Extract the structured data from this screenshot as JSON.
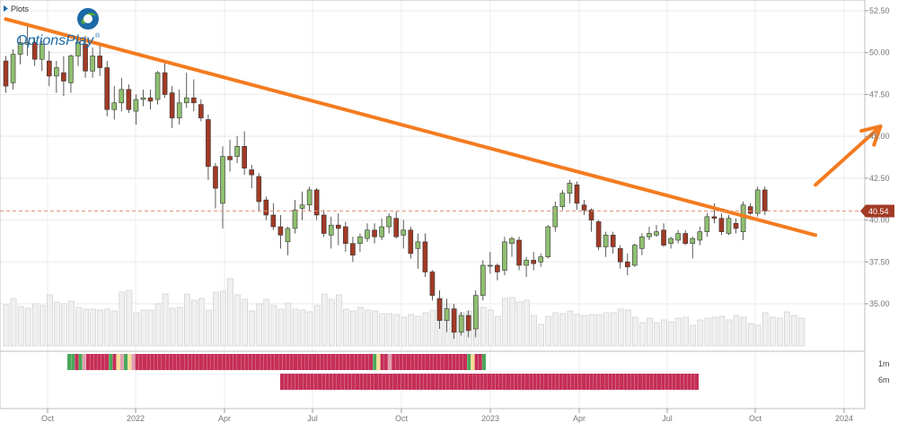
{
  "toolbar": {
    "plots_label": "Plots"
  },
  "logo": {
    "brand_text": "OptionsPlay",
    "trademark": "®",
    "brand_color": "#1b6aa8",
    "accent_color": "#57a838"
  },
  "colors": {
    "up_candle": "#8fbf6f",
    "down_candle": "#a23a25",
    "trendline": "#f47b20",
    "price_line": "#e0957a",
    "price_badge": "#a23a25",
    "volume_bar": "#f0f0f0",
    "heat_strong_bullish": "#4aa85a",
    "heat_bullish": "#a9d8a0",
    "heat_neutral": "#f7dc95",
    "heat_bearish": "#e0a0b0",
    "heat_strong_bearish": "#c52e57"
  },
  "chart_data": {
    "type": "candlestick",
    "title": "",
    "x_tick_labels": [
      "Oct",
      "2022",
      "Apr",
      "Jul",
      "Oct",
      "2023",
      "Apr",
      "Jul",
      "Oct",
      "2024"
    ],
    "y_ticks": [
      35.0,
      37.5,
      40.0,
      42.5,
      45.0,
      47.5,
      50.0,
      52.5
    ],
    "y_tick_labels": [
      "35.00",
      "37.50",
      "40.00",
      "42.50",
      "45.00",
      "47.50",
      "50.00",
      "52.50"
    ],
    "ylim": [
      32.5,
      52.8
    ],
    "last_price": 40.54,
    "last_price_label": "40.54",
    "candles_ohlc": [
      [
        49.5,
        49.8,
        47.6,
        48.0
      ],
      [
        48.2,
        50.2,
        47.8,
        49.9
      ],
      [
        49.9,
        51.0,
        49.3,
        50.6
      ],
      [
        50.5,
        51.6,
        49.8,
        50.6
      ],
      [
        50.6,
        50.9,
        49.2,
        49.6
      ],
      [
        49.6,
        50.7,
        48.9,
        50.5
      ],
      [
        49.5,
        50.1,
        48.0,
        48.6
      ],
      [
        48.6,
        49.5,
        47.6,
        49.1
      ],
      [
        48.8,
        49.8,
        47.4,
        48.3
      ],
      [
        48.2,
        49.9,
        47.6,
        49.8
      ],
      [
        49.8,
        51.0,
        49.2,
        50.6
      ],
      [
        50.5,
        51.0,
        48.5,
        48.9
      ],
      [
        48.9,
        50.3,
        48.5,
        49.8
      ],
      [
        49.8,
        50.6,
        48.6,
        49.1
      ],
      [
        49.1,
        49.5,
        46.2,
        46.6
      ],
      [
        46.6,
        48.0,
        46.0,
        47.0
      ],
      [
        47.0,
        48.5,
        46.5,
        47.8
      ],
      [
        47.8,
        48.1,
        46.4,
        46.6
      ],
      [
        46.5,
        47.5,
        45.7,
        47.2
      ],
      [
        47.2,
        47.8,
        46.8,
        47.3
      ],
      [
        47.3,
        47.8,
        46.6,
        47.1
      ],
      [
        47.2,
        48.9,
        46.9,
        48.8
      ],
      [
        48.8,
        49.5,
        47.3,
        47.5
      ],
      [
        47.6,
        48.0,
        45.5,
        46.1
      ],
      [
        46.1,
        47.8,
        45.7,
        47.0
      ],
      [
        47.0,
        48.8,
        46.7,
        47.3
      ],
      [
        47.3,
        48.4,
        46.5,
        47.0
      ],
      [
        46.9,
        47.2,
        45.9,
        46.1
      ],
      [
        46.0,
        46.3,
        42.4,
        43.2
      ],
      [
        43.2,
        43.4,
        40.7,
        41.9
      ],
      [
        41.0,
        44.4,
        39.5,
        43.8
      ],
      [
        43.8,
        44.8,
        42.9,
        43.6
      ],
      [
        43.8,
        45.0,
        43.4,
        44.4
      ],
      [
        44.4,
        45.3,
        42.7,
        43.1
      ],
      [
        43.0,
        43.3,
        41.9,
        42.7
      ],
      [
        42.6,
        42.8,
        40.5,
        41.1
      ],
      [
        41.2,
        41.4,
        40.0,
        40.3
      ],
      [
        40.3,
        41.0,
        39.4,
        39.6
      ],
      [
        39.6,
        40.3,
        38.3,
        39.1
      ],
      [
        38.7,
        39.6,
        37.9,
        39.5
      ],
      [
        39.5,
        41.2,
        39.2,
        40.6
      ],
      [
        40.7,
        41.7,
        40.0,
        40.9
      ],
      [
        40.9,
        42.0,
        40.5,
        41.8
      ],
      [
        41.8,
        41.9,
        40.0,
        40.3
      ],
      [
        40.3,
        40.6,
        39.0,
        39.2
      ],
      [
        39.1,
        40.2,
        38.3,
        39.7
      ],
      [
        39.7,
        40.4,
        38.5,
        39.5
      ],
      [
        39.6,
        39.9,
        38.1,
        38.6
      ],
      [
        38.6,
        39.0,
        37.5,
        37.9
      ],
      [
        38.6,
        39.2,
        38.1,
        39.0
      ],
      [
        38.9,
        39.8,
        38.7,
        39.4
      ],
      [
        39.4,
        39.8,
        38.6,
        39.0
      ],
      [
        39.0,
        40.1,
        38.8,
        39.6
      ],
      [
        39.6,
        40.4,
        39.2,
        40.2
      ],
      [
        40.1,
        40.5,
        38.9,
        39.0
      ],
      [
        39.1,
        40.0,
        38.3,
        39.4
      ],
      [
        39.4,
        39.6,
        37.7,
        38.0
      ],
      [
        38.3,
        39.2,
        37.1,
        38.7
      ],
      [
        38.7,
        39.2,
        36.6,
        36.9
      ],
      [
        36.9,
        37.0,
        35.2,
        35.5
      ],
      [
        35.3,
        35.8,
        33.5,
        34.0
      ],
      [
        34.0,
        35.3,
        33.3,
        34.7
      ],
      [
        34.7,
        35.0,
        32.9,
        33.3
      ],
      [
        33.3,
        34.5,
        33.1,
        34.3
      ],
      [
        34.3,
        34.6,
        33.0,
        33.4
      ],
      [
        33.5,
        35.8,
        33.0,
        35.5
      ],
      [
        35.5,
        37.6,
        35.2,
        37.3
      ],
      [
        37.3,
        38.1,
        36.8,
        37.3
      ],
      [
        37.3,
        37.4,
        36.4,
        36.9
      ],
      [
        37.0,
        39.0,
        36.7,
        38.7
      ],
      [
        38.6,
        39.0,
        37.8,
        38.9
      ],
      [
        38.8,
        39.0,
        37.0,
        37.3
      ],
      [
        37.3,
        37.8,
        36.6,
        37.6
      ],
      [
        37.6,
        38.1,
        37.0,
        37.4
      ],
      [
        37.5,
        38.0,
        37.2,
        37.8
      ],
      [
        37.8,
        39.7,
        37.7,
        39.6
      ],
      [
        39.6,
        41.1,
        39.3,
        40.8
      ],
      [
        40.8,
        41.8,
        40.6,
        41.6
      ],
      [
        41.6,
        42.4,
        41.0,
        42.2
      ],
      [
        42.1,
        42.3,
        40.6,
        41.0
      ],
      [
        40.9,
        41.2,
        40.3,
        40.6
      ],
      [
        40.6,
        40.7,
        39.3,
        40.0
      ],
      [
        39.9,
        40.0,
        38.2,
        38.4
      ],
      [
        38.4,
        39.3,
        37.8,
        39.1
      ],
      [
        39.1,
        39.3,
        38.0,
        38.4
      ],
      [
        38.3,
        38.5,
        37.1,
        37.5
      ],
      [
        37.5,
        38.0,
        36.7,
        37.2
      ],
      [
        37.3,
        38.6,
        37.2,
        38.5
      ],
      [
        38.3,
        39.2,
        37.9,
        39.0
      ],
      [
        39.0,
        39.6,
        38.8,
        39.2
      ],
      [
        39.1,
        39.7,
        39.0,
        39.3
      ],
      [
        39.4,
        39.8,
        38.4,
        38.5
      ],
      [
        38.6,
        39.0,
        38.3,
        38.9
      ],
      [
        38.8,
        39.4,
        38.6,
        39.2
      ],
      [
        39.2,
        39.4,
        38.5,
        38.6
      ],
      [
        38.6,
        39.0,
        37.7,
        38.9
      ],
      [
        38.8,
        39.6,
        38.5,
        39.3
      ],
      [
        39.3,
        40.4,
        39.0,
        40.2
      ],
      [
        40.2,
        41.0,
        39.8,
        40.1
      ],
      [
        40.1,
        40.4,
        39.1,
        39.3
      ],
      [
        39.2,
        40.3,
        39.1,
        40.1
      ],
      [
        39.8,
        40.1,
        39.2,
        39.5
      ],
      [
        39.3,
        41.1,
        38.8,
        40.9
      ],
      [
        40.8,
        41.0,
        40.3,
        40.4
      ],
      [
        40.4,
        42.0,
        40.2,
        41.8
      ],
      [
        41.8,
        42.0,
        40.3,
        40.54
      ]
    ],
    "volume_relative": [
      0.46,
      0.53,
      0.44,
      0.42,
      0.47,
      0.45,
      0.57,
      0.49,
      0.47,
      0.5,
      0.43,
      0.41,
      0.41,
      0.4,
      0.41,
      0.39,
      0.6,
      0.62,
      0.37,
      0.4,
      0.4,
      0.47,
      0.58,
      0.42,
      0.43,
      0.58,
      0.51,
      0.53,
      0.4,
      0.6,
      0.61,
      0.75,
      0.57,
      0.52,
      0.39,
      0.47,
      0.52,
      0.45,
      0.41,
      0.48,
      0.41,
      0.4,
      0.38,
      0.45,
      0.58,
      0.52,
      0.57,
      0.41,
      0.39,
      0.43,
      0.4,
      0.39,
      0.36,
      0.36,
      0.35,
      0.32,
      0.35,
      0.33,
      0.37,
      0.4,
      0.54,
      0.47,
      0.41,
      0.37,
      0.39,
      0.44,
      0.43,
      0.4,
      0.33,
      0.53,
      0.54,
      0.49,
      0.51,
      0.34,
      0.24,
      0.33,
      0.37,
      0.36,
      0.39,
      0.35,
      0.34,
      0.35,
      0.35,
      0.37,
      0.37,
      0.41,
      0.4,
      0.32,
      0.26,
      0.31,
      0.26,
      0.29,
      0.27,
      0.31,
      0.32,
      0.23,
      0.29,
      0.31,
      0.32,
      0.33,
      0.29,
      0.34,
      0.32,
      0.25,
      0.23,
      0.37,
      0.32,
      0.31,
      0.38,
      0.34,
      0.31
    ],
    "signal_rows": [
      {
        "label": "1m",
        "cells": [
          "SG",
          "SG",
          "SR",
          "SG",
          "BR",
          "SR",
          "SR",
          "SR",
          "SR",
          "SR",
          "SR",
          "SG",
          "SR",
          "NE",
          "BR",
          "SG",
          "NE",
          "BR",
          "SR",
          "SR",
          "SR",
          "SR",
          "SR",
          "SR",
          "SR",
          "SR",
          "SR",
          "SR",
          "SR",
          "SR",
          "SR",
          "SR",
          "SR",
          "SR",
          "SR",
          "SR",
          "SR",
          "SR",
          "SR",
          "SR",
          "SR",
          "SR",
          "SR",
          "SR",
          "SR",
          "SR",
          "SR",
          "SR",
          "SR",
          "SR",
          "SR",
          "SR",
          "SR",
          "SR",
          "SR",
          "SR",
          "SR",
          "SR",
          "SR",
          "SR",
          "SR",
          "SR",
          "SR",
          "SR",
          "SR",
          "SR",
          "SR",
          "SR",
          "SR",
          "SR",
          "SR",
          "SR",
          "SR",
          "SR",
          "SR",
          "SR",
          "SR",
          "SR",
          "SR",
          "SR",
          "SR",
          "SG",
          "NE",
          "SR",
          "SR",
          "BR",
          "SR",
          "SR",
          "SR",
          "SR",
          "SR",
          "SR",
          "SR",
          "SR",
          "SR",
          "SR",
          "SR",
          "SR",
          "SR",
          "SR",
          "SR",
          "SR",
          "SR",
          "SR",
          "SR",
          "SR",
          "SG",
          "NE",
          "SR",
          "SR",
          "SG"
        ]
      },
      {
        "label": "6m",
        "cells": [
          "SR",
          "SR",
          "SR",
          "SR",
          "SR",
          "SR",
          "SR",
          "SR",
          "SR",
          "SR",
          "SR",
          "SR",
          "SR",
          "SR",
          "SR",
          "SR",
          "SR",
          "SR",
          "SR",
          "SR",
          "SR",
          "SR",
          "SR",
          "SR",
          "SR",
          "SR",
          "SR",
          "SR",
          "SR",
          "SR",
          "SR",
          "SR",
          "SR",
          "SR",
          "SR",
          "SR",
          "SR",
          "SR",
          "SR",
          "SR",
          "SR",
          "SR",
          "SR",
          "SR",
          "SR",
          "SR",
          "SR",
          "SR",
          "SR",
          "SR",
          "SR",
          "SR",
          "SR",
          "SR",
          "SR",
          "SR",
          "SR",
          "SR",
          "SR",
          "SR",
          "SR",
          "SR",
          "SR",
          "SR",
          "SR",
          "SR",
          "SR",
          "SR",
          "SR",
          "SR",
          "SR",
          "SR",
          "SR",
          "SR",
          "SR",
          "SR",
          "SR",
          "SR",
          "SR",
          "SR",
          "SR",
          "SR",
          "SR",
          "SR",
          "SR",
          "SR",
          "SR",
          "SR",
          "SR",
          "SR",
          "SR",
          "SR",
          "SR",
          "SR",
          "SR",
          "SR",
          "SR",
          "SR",
          "SR",
          "SR",
          "SR",
          "SR",
          "SR",
          "SR",
          "SR",
          "SR",
          "SR",
          "SR",
          "SR",
          "SR",
          "SR"
        ]
      }
    ],
    "trendline": {
      "start": [
        0,
        52.0
      ],
      "end": [
        112,
        39.1
      ]
    },
    "projection_arrow": {
      "start": [
        112,
        42.1
      ],
      "end": [
        121,
        45.6
      ]
    }
  }
}
